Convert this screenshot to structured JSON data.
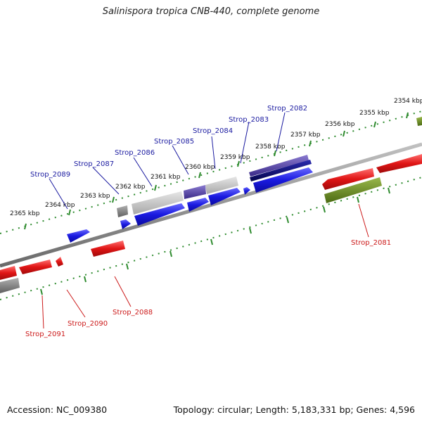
{
  "title": "Salinispora tropica CNB-440, complete genome",
  "footer": {
    "accession": "Accession: NC_009380",
    "topology": "Topology: circular; Length: 5,183,331 bp; Genes: 4,596"
  },
  "colors": {
    "forward": "#1a1ae0",
    "reverse": "#e01515",
    "gray": "#808080",
    "light_gray": "#c8c8c8",
    "purple": "#5a4aa8",
    "dark_navy": "#101070",
    "olive": "#6b8e23",
    "ticks": "#2e8b2e",
    "backbone": "#8a8a8a",
    "label_forward": "#1a1aa0",
    "label_reverse": "#cc1a1a"
  },
  "kbp_labels": [
    "2354 kbp",
    "2355 kbp",
    "2356 kbp",
    "2357 kbp",
    "2358 kbp",
    "2359 kbp",
    "2360 kbp",
    "2361 kbp",
    "2362 kbp",
    "2363 kbp",
    "2364 kbp",
    "2365 kbp"
  ],
  "forward_labels": [
    "Strop_2082",
    "Strop_2083",
    "Strop_2084",
    "Strop_2085",
    "Strop_2086",
    "Strop_2087",
    "Strop_2089"
  ],
  "reverse_labels": [
    "Strop_2081",
    "Strop_2088",
    "Strop_2090",
    "Strop_2091"
  ]
}
